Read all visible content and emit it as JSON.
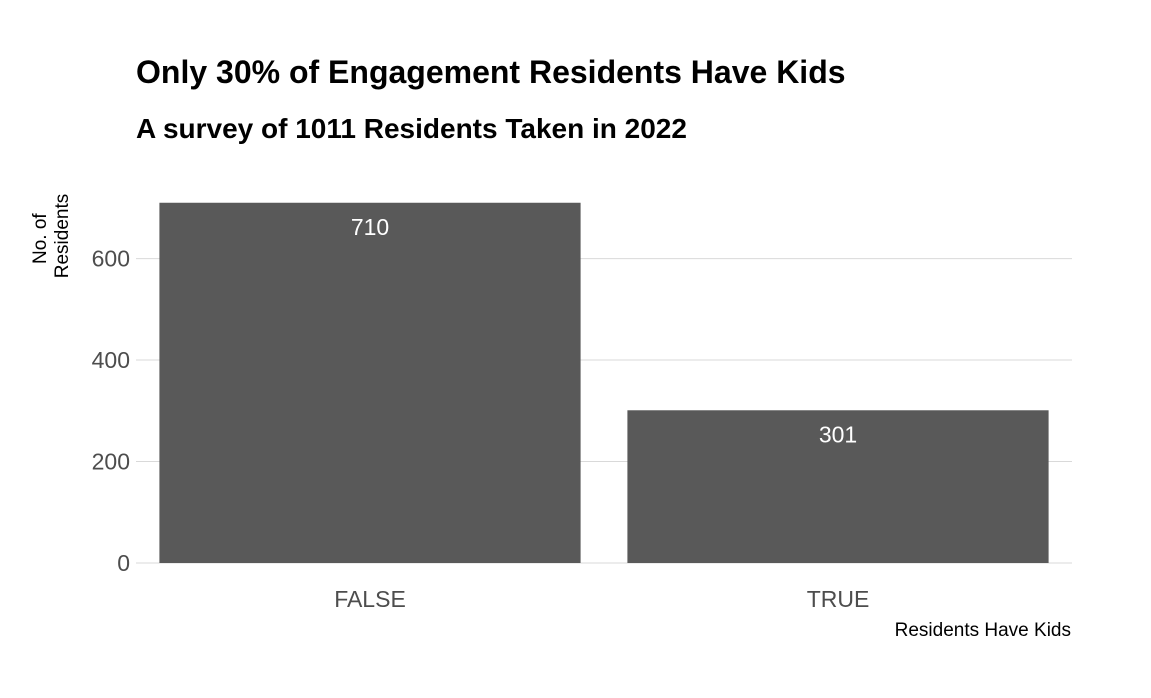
{
  "chart_data": {
    "type": "bar",
    "title": "Only 30% of Engagement Residents Have Kids",
    "subtitle": "A survey of 1011 Residents Taken in 2022",
    "xlabel": "Residents Have Kids",
    "ylabel_lines": [
      "No. of",
      "Residents"
    ],
    "categories": [
      "FALSE",
      "TRUE"
    ],
    "values": [
      710,
      301
    ],
    "data_labels": [
      "710",
      "301"
    ],
    "y_ticks": [
      0,
      200,
      400,
      600
    ],
    "y_tick_labels": [
      "0",
      "200",
      "400",
      "600"
    ],
    "ylim": [
      0,
      745
    ],
    "grid": "horizontal",
    "legend": "none",
    "colors": {
      "bar": "#595959",
      "grid": "#d9d9d9",
      "background": "#ffffff"
    }
  }
}
